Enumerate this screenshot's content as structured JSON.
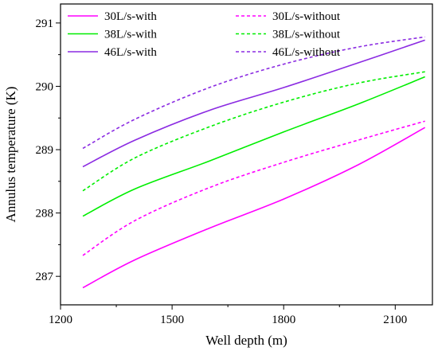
{
  "chart_data": {
    "type": "line",
    "xlabel": "Well depth (m)",
    "ylabel": "Annulus temperature (K)",
    "xlim": [
      1200,
      2200
    ],
    "ylim": [
      286.55,
      291.3
    ],
    "xticks": [
      1200,
      1500,
      1800,
      2100
    ],
    "yticks": [
      287,
      288,
      289,
      290,
      291
    ],
    "x_tick_labels": [
      "1200",
      "1500",
      "1800",
      "2100"
    ],
    "y_tick_labels": [
      "287",
      "288",
      "289",
      "290",
      "291"
    ],
    "grid": false,
    "legend_position": "top-left",
    "series": [
      {
        "name": "30L/s-with",
        "color": "#ff00ff",
        "dash": "solid",
        "x": [
          1260,
          1400,
          1600,
          1800,
          2000,
          2180
        ],
        "y": [
          286.82,
          287.26,
          287.76,
          288.22,
          288.76,
          289.35
        ]
      },
      {
        "name": "30L/s-without",
        "color": "#ff00ff",
        "dash": "dashed",
        "x": [
          1260,
          1400,
          1600,
          1800,
          2000,
          2180
        ],
        "y": [
          287.33,
          287.88,
          288.4,
          288.8,
          289.15,
          289.45
        ]
      },
      {
        "name": "38L/s-with",
        "color": "#00ee00",
        "dash": "solid",
        "x": [
          1260,
          1400,
          1600,
          1800,
          2000,
          2180
        ],
        "y": [
          287.95,
          288.38,
          288.82,
          289.28,
          289.72,
          290.15
        ]
      },
      {
        "name": "38L/s-without",
        "color": "#00ee00",
        "dash": "dashed",
        "x": [
          1260,
          1400,
          1600,
          1800,
          2000,
          2180
        ],
        "y": [
          288.35,
          288.87,
          289.36,
          289.75,
          290.05,
          290.23
        ]
      },
      {
        "name": "46L/s-with",
        "color": "#8b2be2",
        "dash": "solid",
        "x": [
          1260,
          1400,
          1600,
          1800,
          2000,
          2180
        ],
        "y": [
          288.73,
          289.15,
          289.62,
          289.98,
          290.37,
          290.73
        ]
      },
      {
        "name": "46L/s-without",
        "color": "#8b2be2",
        "dash": "dashed",
        "x": [
          1260,
          1400,
          1600,
          1800,
          2000,
          2180
        ],
        "y": [
          289.02,
          289.48,
          289.98,
          290.35,
          290.62,
          290.78
        ]
      }
    ]
  }
}
